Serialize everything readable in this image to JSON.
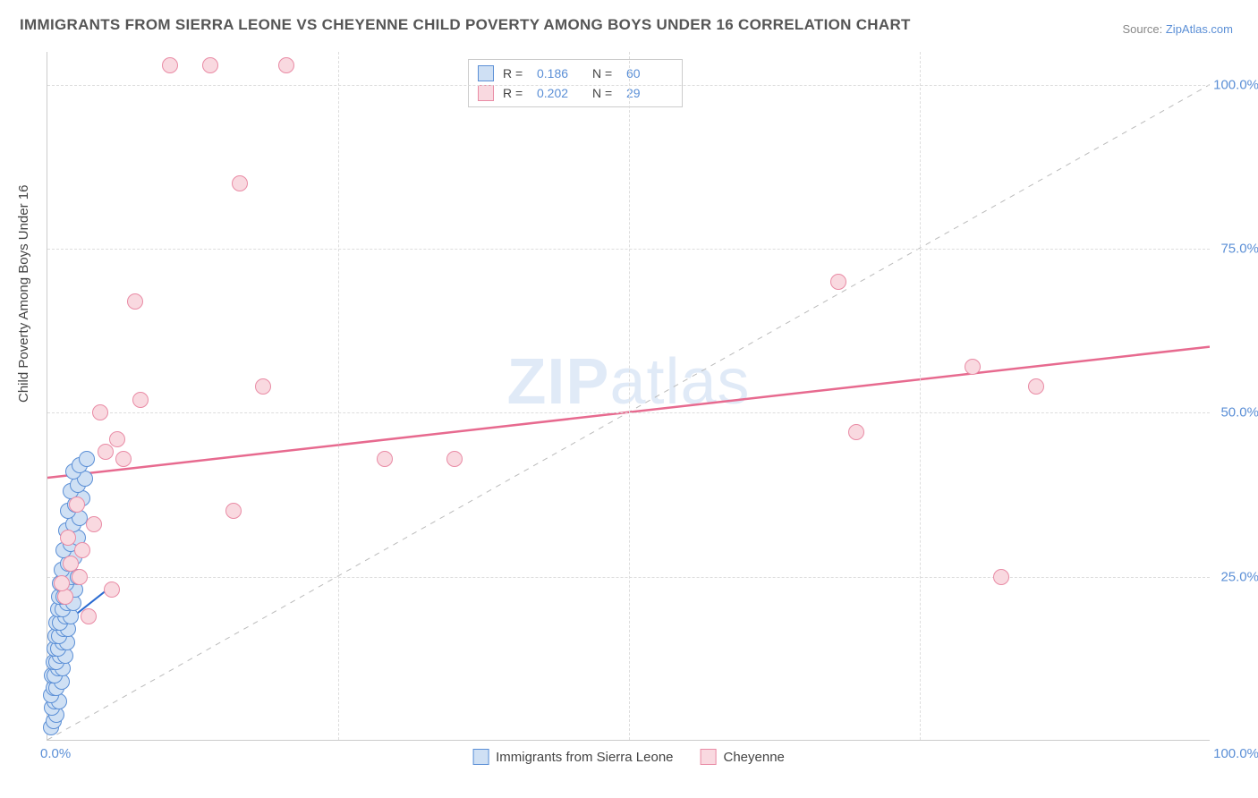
{
  "title": "IMMIGRANTS FROM SIERRA LEONE VS CHEYENNE CHILD POVERTY AMONG BOYS UNDER 16 CORRELATION CHART",
  "source_prefix": "Source: ",
  "source_link": "ZipAtlas.com",
  "ylabel": "Child Poverty Among Boys Under 16",
  "watermark_bold": "ZIP",
  "watermark_rest": "atlas",
  "chart": {
    "type": "scatter",
    "xlim": [
      0,
      100
    ],
    "ylim": [
      0,
      105
    ],
    "xtick_labels": {
      "0": "0.0%",
      "100": "100.0%"
    },
    "ytick_labels": {
      "25": "25.0%",
      "50": "50.0%",
      "75": "75.0%",
      "100": "100.0%"
    },
    "grid_color": "#dddddd",
    "background_color": "#ffffff",
    "axis_color": "#cccccc",
    "tick_font_color": "#5b8fd6",
    "tick_fontsize": 15,
    "marker_radius": 9,
    "marker_stroke_width": 1.5,
    "diagonal": {
      "color": "#bbbbbb",
      "dash": "6,6",
      "from": [
        0,
        0
      ],
      "to": [
        100,
        100
      ]
    },
    "series": [
      {
        "id": "sierra_leone",
        "label": "Immigrants from Sierra Leone",
        "fill": "#cfe0f4",
        "stroke": "#5b8fd6",
        "R": 0.186,
        "N": 60,
        "trend": {
          "from": [
            0.2,
            16
          ],
          "to": [
            5.2,
            23
          ],
          "color": "#2b6bd1",
          "width": 2
        },
        "points": [
          [
            0.3,
            2
          ],
          [
            0.5,
            3
          ],
          [
            0.8,
            4
          ],
          [
            0.4,
            5
          ],
          [
            0.6,
            6
          ],
          [
            1.0,
            6
          ],
          [
            0.3,
            7
          ],
          [
            0.5,
            8
          ],
          [
            0.8,
            8
          ],
          [
            1.2,
            9
          ],
          [
            0.4,
            10
          ],
          [
            0.6,
            10
          ],
          [
            0.9,
            11
          ],
          [
            1.3,
            11
          ],
          [
            0.5,
            12
          ],
          [
            0.8,
            12
          ],
          [
            1.1,
            13
          ],
          [
            1.5,
            13
          ],
          [
            0.6,
            14
          ],
          [
            0.9,
            14
          ],
          [
            1.3,
            15
          ],
          [
            1.7,
            15
          ],
          [
            0.7,
            16
          ],
          [
            1.0,
            16
          ],
          [
            1.4,
            17
          ],
          [
            1.8,
            17
          ],
          [
            0.8,
            18
          ],
          [
            1.1,
            18
          ],
          [
            1.5,
            19
          ],
          [
            2.0,
            19
          ],
          [
            0.9,
            20
          ],
          [
            1.3,
            20
          ],
          [
            1.7,
            21
          ],
          [
            2.2,
            21
          ],
          [
            1.0,
            22
          ],
          [
            1.4,
            22
          ],
          [
            1.9,
            23
          ],
          [
            2.4,
            23
          ],
          [
            1.1,
            24
          ],
          [
            1.6,
            24
          ],
          [
            2.1,
            25
          ],
          [
            2.6,
            25
          ],
          [
            1.2,
            26
          ],
          [
            1.8,
            27
          ],
          [
            2.3,
            28
          ],
          [
            1.4,
            29
          ],
          [
            2.0,
            30
          ],
          [
            2.6,
            31
          ],
          [
            1.6,
            32
          ],
          [
            2.2,
            33
          ],
          [
            2.8,
            34
          ],
          [
            1.8,
            35
          ],
          [
            2.4,
            36
          ],
          [
            3.0,
            37
          ],
          [
            2.0,
            38
          ],
          [
            2.6,
            39
          ],
          [
            3.2,
            40
          ],
          [
            2.2,
            41
          ],
          [
            2.8,
            42
          ],
          [
            3.4,
            43
          ]
        ]
      },
      {
        "id": "cheyenne",
        "label": "Cheyenne",
        "fill": "#f9d9e0",
        "stroke": "#e98ba5",
        "R": 0.202,
        "N": 29,
        "trend": {
          "from": [
            0,
            40
          ],
          "to": [
            100,
            60
          ],
          "color": "#e76a8f",
          "width": 2.5
        },
        "points": [
          [
            1.5,
            22
          ],
          [
            3.5,
            19
          ],
          [
            5.5,
            23
          ],
          [
            2.0,
            27
          ],
          [
            3.0,
            29
          ],
          [
            1.8,
            31
          ],
          [
            4.0,
            33
          ],
          [
            2.5,
            36
          ],
          [
            6.5,
            43
          ],
          [
            16.0,
            35
          ],
          [
            5.0,
            44
          ],
          [
            6.0,
            46
          ],
          [
            4.5,
            50
          ],
          [
            8.0,
            52
          ],
          [
            18.5,
            54
          ],
          [
            7.5,
            67
          ],
          [
            16.5,
            85
          ],
          [
            10.5,
            103
          ],
          [
            14.0,
            103
          ],
          [
            20.5,
            103
          ],
          [
            29.0,
            43
          ],
          [
            35.0,
            43
          ],
          [
            68.0,
            70
          ],
          [
            69.5,
            47
          ],
          [
            79.5,
            57
          ],
          [
            85.0,
            54
          ],
          [
            82.0,
            25
          ],
          [
            1.2,
            24
          ],
          [
            2.8,
            25
          ]
        ]
      }
    ]
  },
  "legend_top": {
    "r_label": "R  =",
    "n_label": "N  ="
  }
}
